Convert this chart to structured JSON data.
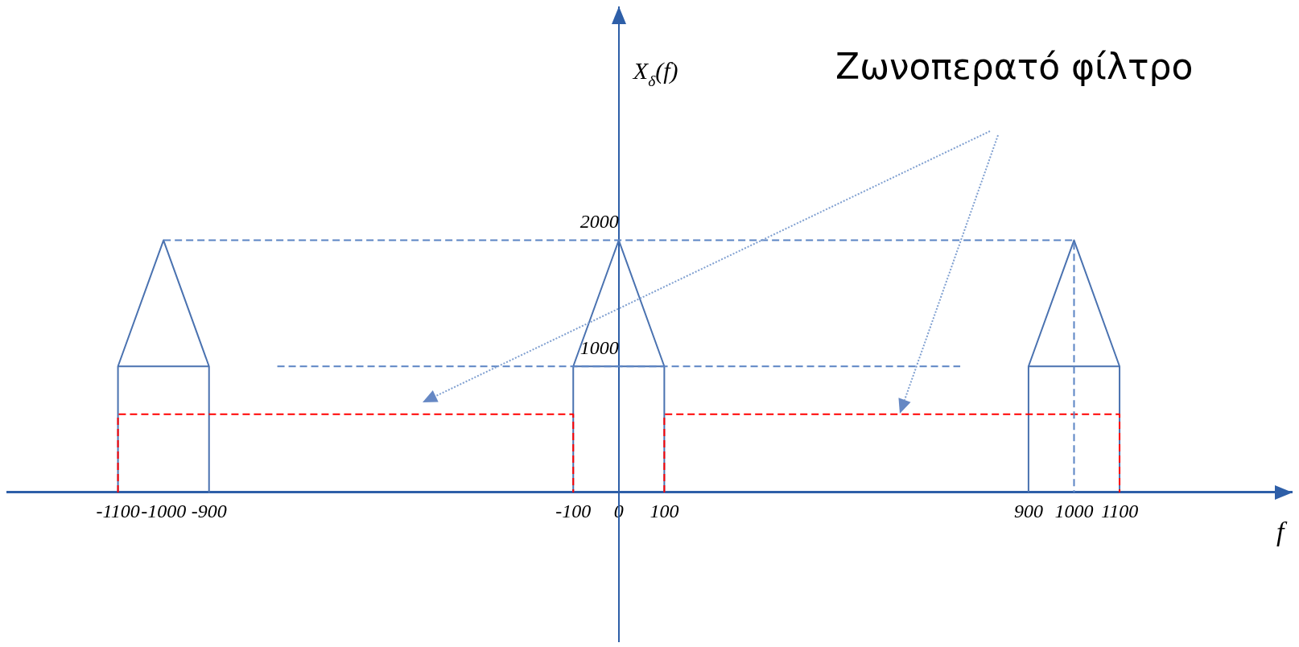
{
  "chart_data": {
    "type": "line",
    "xlabel": "f",
    "ylabel": "X$_{δ}$(f)",
    "annotations": [
      "Ζωνοπερατό φίλτρο"
    ],
    "marker": "none",
    "grid": false,
    "xlim": [
      -1345,
      1480
    ],
    "ylim": [
      -1187,
      3854
    ],
    "xticks": [
      -1100,
      -1000,
      -900,
      -100,
      0,
      100,
      900,
      1000,
      1100
    ],
    "yticks": [
      1000,
      2000
    ],
    "series": [
      {
        "color": "#4a72b0",
        "line_style": "solid",
        "x": [
          -1100,
          -1100,
          -1000,
          -900,
          -900,
          -900,
          -1100,
          -500,
          -100,
          -100,
          0,
          100,
          100,
          100,
          -100,
          500,
          900,
          900,
          1000,
          1100,
          1100,
          1100,
          900
        ],
        "values": [
          0,
          1000,
          2000,
          1000,
          0,
          1000,
          1000,
          null,
          0,
          1000,
          2000,
          1000,
          0,
          1000,
          1000,
          null,
          0,
          1000,
          2000,
          1000,
          0,
          1000,
          1000
        ]
      },
      {
        "color": "#ff0000",
        "line_style": "dashed",
        "x": [
          -1100,
          -1100,
          -100,
          -100,
          0,
          100,
          100,
          1100,
          1100
        ],
        "values": [
          0,
          620,
          620,
          0,
          null,
          0,
          620,
          620,
          0
        ]
      },
      {
        "color": "#5b84c4",
        "line_style": "dashed",
        "x": [
          -1000,
          1000,
          1000,
          0,
          -750,
          750
        ],
        "values": [
          2000,
          2000,
          0,
          null,
          1000,
          1000
        ]
      }
    ]
  }
}
